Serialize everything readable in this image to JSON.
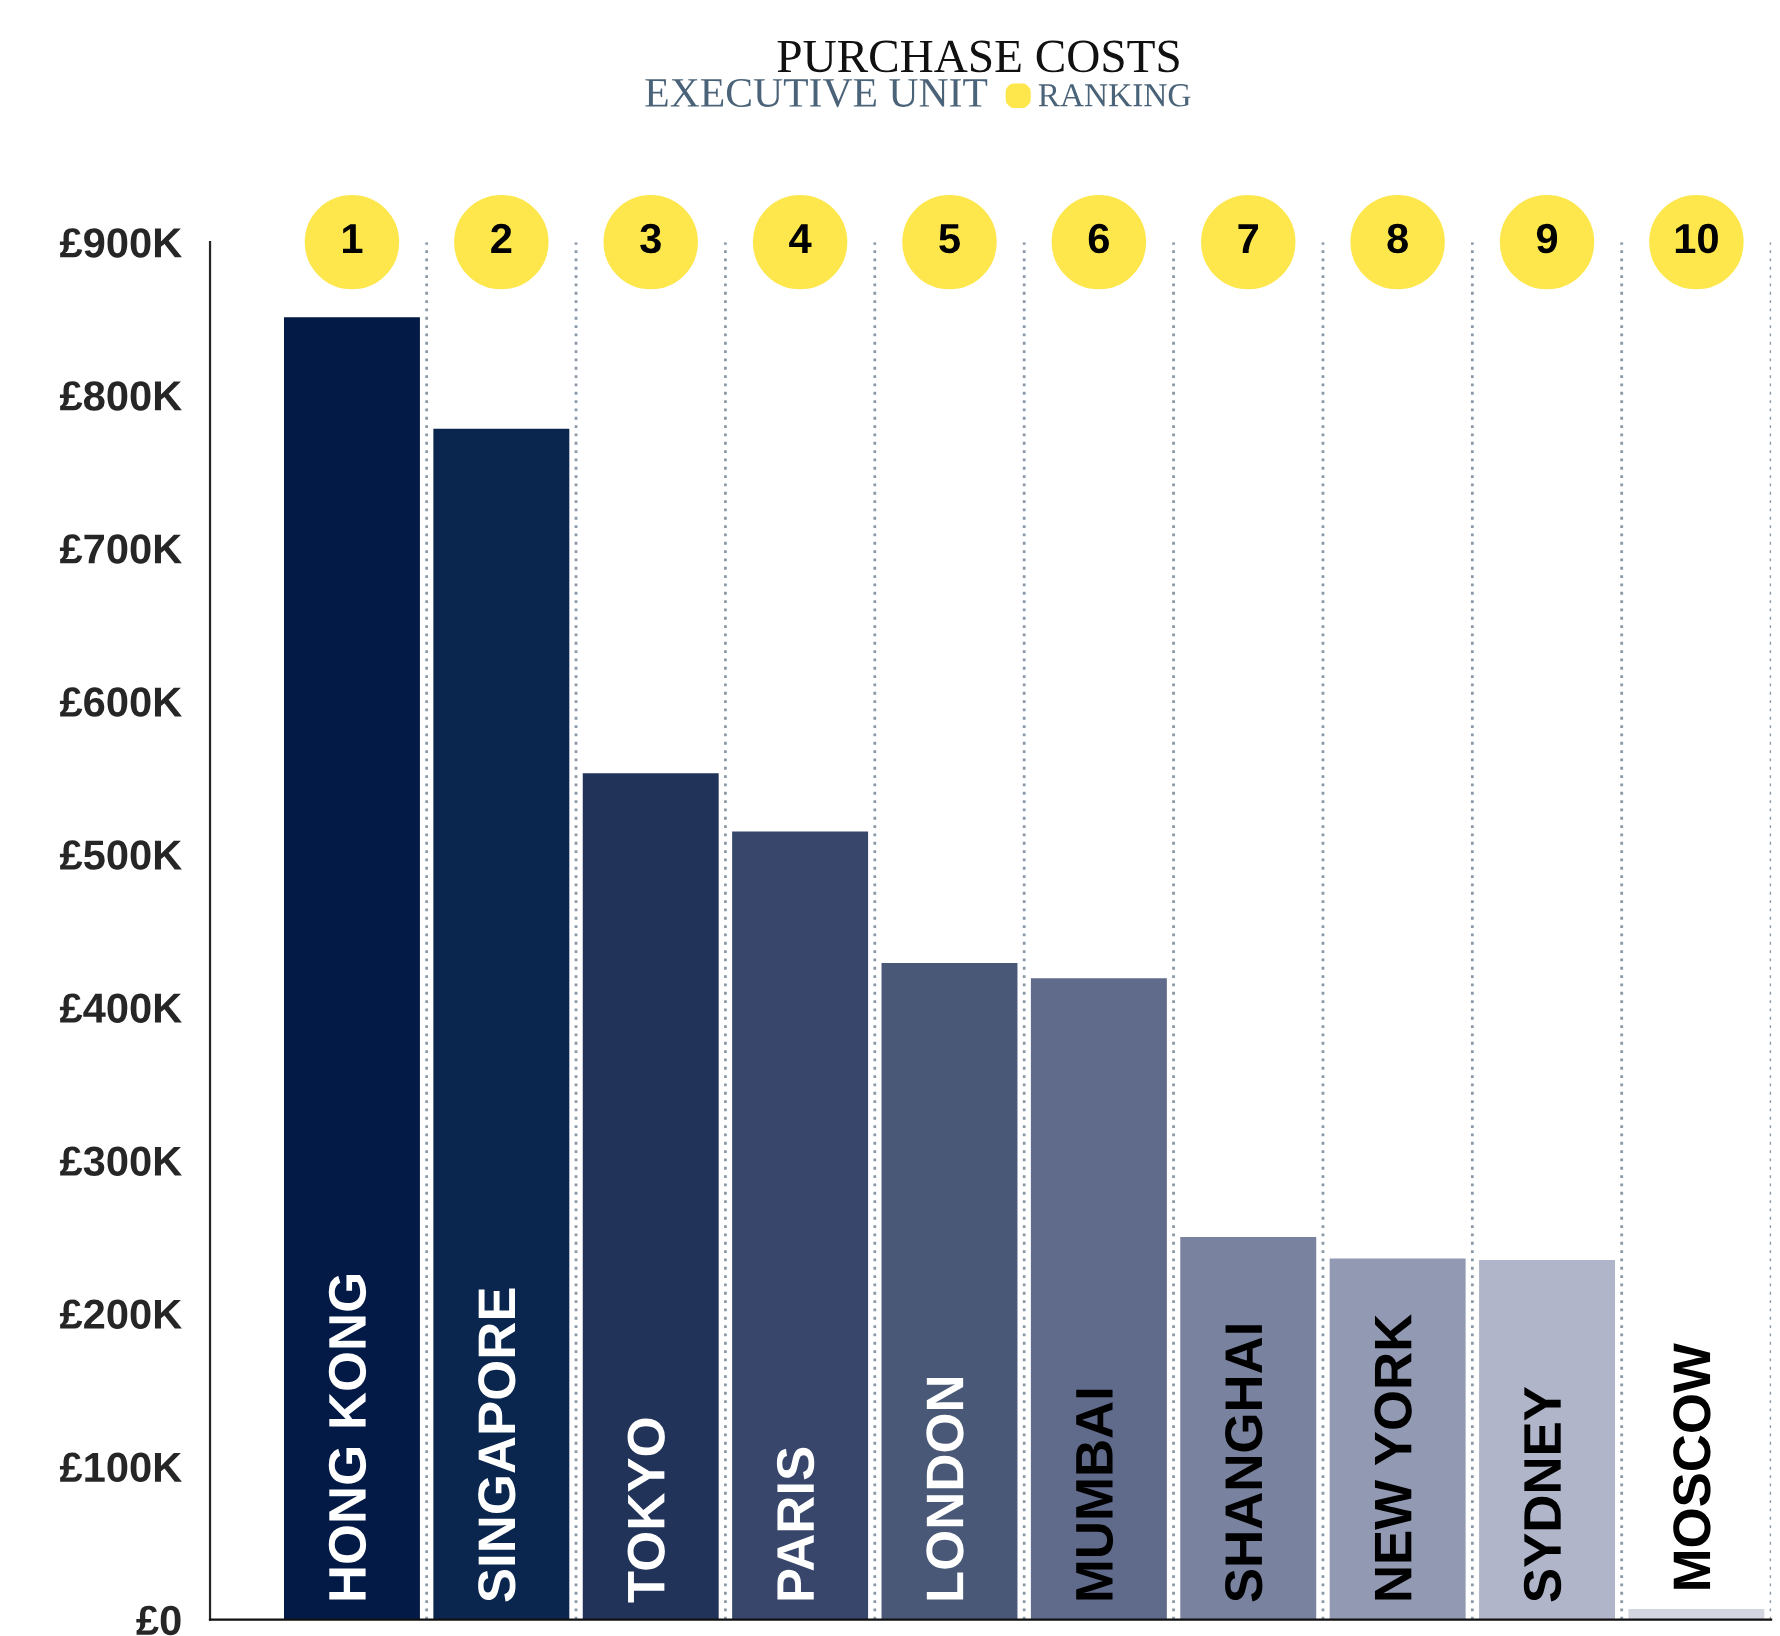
{
  "chart_data": {
    "type": "bar",
    "title": "PURCHASE COSTS",
    "subtitle": "EXECUTIVE UNIT",
    "categories": [
      "HONG KONG",
      "SINGAPORE",
      "TOKYO",
      "PARIS",
      "LONDON",
      "MUMBAI",
      "SHANGHAI",
      "NEW YORK",
      "SYDNEY",
      "MOSCOW"
    ],
    "values": [
      851000,
      778000,
      553000,
      515000,
      429000,
      419000,
      250000,
      236000,
      235000,
      7000
    ],
    "colors": [
      "#021a45",
      "#0a264e",
      "#22335a",
      "#38466c",
      "#4a5878",
      "#606b8b",
      "#79829f",
      "#9299b2",
      "#b0b5c9",
      "#d3d6e1"
    ],
    "ylim": [
      0,
      900000
    ],
    "yticks": [
      {
        "value": 0,
        "label": "£0"
      },
      {
        "value": 100000,
        "label": "£100K"
      },
      {
        "value": 200000,
        "label": "£200K"
      },
      {
        "value": 300000,
        "label": "£300K"
      },
      {
        "value": 400000,
        "label": "£400K"
      },
      {
        "value": 500000,
        "label": "£500K"
      },
      {
        "value": 600000,
        "label": "£600K"
      },
      {
        "value": 700000,
        "label": "£700K"
      },
      {
        "value": 800000,
        "label": "£800K"
      },
      {
        "value": 900000,
        "label": "£900K"
      }
    ],
    "grid": "x",
    "annotations": [
      "RANKING",
      "1",
      "2",
      "3",
      "4",
      "5",
      "6",
      "7",
      "8",
      "9",
      "10"
    ]
  }
}
